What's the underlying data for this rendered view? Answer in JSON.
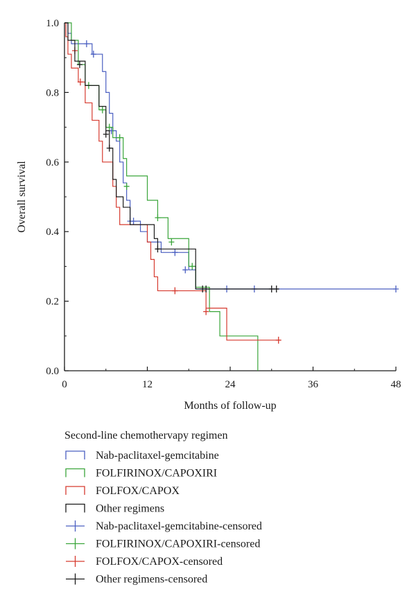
{
  "chart_data": {
    "type": "line",
    "subtype": "kaplan-meier",
    "title": "",
    "xlabel": "Months of follow-up",
    "ylabel": "Overall survival",
    "xlim": [
      0,
      48
    ],
    "ylim": [
      0,
      1.0
    ],
    "xticks": [
      0,
      12,
      24,
      36,
      48
    ],
    "yticks": [
      0.0,
      0.2,
      0.4,
      0.6,
      0.8,
      1.0
    ],
    "xtick_labels": [
      "0",
      "12",
      "24",
      "36",
      "48"
    ],
    "ytick_labels": [
      "0.0",
      "0.2",
      "0.4",
      "0.6",
      "0.8",
      "1.0"
    ],
    "grid": false,
    "legend_position": "bottom",
    "legend_title": "Second-line chemothervapy regimen",
    "legend": [
      {
        "label": "Nab-paclitaxel-gemcitabine",
        "color": "#4a5fc1",
        "kind": "step"
      },
      {
        "label": "FOLFIRINOX/CAPOXIRI",
        "color": "#3aa53a",
        "kind": "step"
      },
      {
        "label": "FOLFOX/CAPOX",
        "color": "#d63a2f",
        "kind": "step"
      },
      {
        "label": "Other regimens",
        "color": "#1a1a1a",
        "kind": "step"
      },
      {
        "label": "Nab-paclitaxel-gemcitabine-censored",
        "color": "#4a5fc1",
        "kind": "censor"
      },
      {
        "label": "FOLFIRINOX/CAPOXIRI-censored",
        "color": "#3aa53a",
        "kind": "censor"
      },
      {
        "label": "FOLFOX/CAPOX-censored",
        "color": "#d63a2f",
        "kind": "censor"
      },
      {
        "label": "Other regimens-censored",
        "color": "#1a1a1a",
        "kind": "censor"
      }
    ],
    "series": [
      {
        "color": "#4a5fc1",
        "steps": [
          [
            0,
            1.0
          ],
          [
            0.5,
            0.97
          ],
          [
            1,
            0.94
          ],
          [
            4,
            0.91
          ],
          [
            5.5,
            0.86
          ],
          [
            6,
            0.8
          ],
          [
            6.5,
            0.74
          ],
          [
            7,
            0.69
          ],
          [
            7.5,
            0.66
          ],
          [
            8,
            0.6
          ],
          [
            8.5,
            0.54
          ],
          [
            9,
            0.49
          ],
          [
            9.5,
            0.43
          ],
          [
            11,
            0.4
          ],
          [
            12,
            0.37
          ],
          [
            14,
            0.34
          ],
          [
            18,
            0.29
          ],
          [
            19,
            0.235
          ],
          [
            48,
            0.235
          ]
        ],
        "censored": [
          [
            3.2,
            0.94
          ],
          [
            4.2,
            0.91
          ],
          [
            6.8,
            0.69
          ],
          [
            9.5,
            0.43
          ],
          [
            10,
            0.43
          ],
          [
            16,
            0.34
          ],
          [
            17.5,
            0.29
          ],
          [
            23.5,
            0.235
          ],
          [
            27.5,
            0.235
          ],
          [
            48,
            0.235
          ]
        ]
      },
      {
        "color": "#3aa53a",
        "steps": [
          [
            0,
            1.0
          ],
          [
            1,
            0.95
          ],
          [
            2,
            0.88
          ],
          [
            3,
            0.82
          ],
          [
            5,
            0.75
          ],
          [
            6,
            0.7
          ],
          [
            7,
            0.67
          ],
          [
            8.5,
            0.61
          ],
          [
            9,
            0.56
          ],
          [
            12,
            0.49
          ],
          [
            13.5,
            0.44
          ],
          [
            15,
            0.38
          ],
          [
            18,
            0.3
          ],
          [
            19,
            0.24
          ],
          [
            21,
            0.17
          ],
          [
            22.5,
            0.1
          ],
          [
            28,
            0.0
          ]
        ],
        "censored": [
          [
            3.5,
            0.82
          ],
          [
            5.5,
            0.75
          ],
          [
            6.5,
            0.7
          ],
          [
            8,
            0.67
          ],
          [
            9,
            0.53
          ],
          [
            13.5,
            0.44
          ],
          [
            15.5,
            0.37
          ],
          [
            18.5,
            0.3
          ]
        ]
      },
      {
        "color": "#d63a2f",
        "steps": [
          [
            0,
            1.0
          ],
          [
            0.2,
            0.96
          ],
          [
            0.5,
            0.91
          ],
          [
            1,
            0.87
          ],
          [
            2,
            0.83
          ],
          [
            3,
            0.77
          ],
          [
            4,
            0.72
          ],
          [
            5,
            0.66
          ],
          [
            5.5,
            0.6
          ],
          [
            7,
            0.53
          ],
          [
            7.5,
            0.47
          ],
          [
            8,
            0.42
          ],
          [
            11,
            0.42
          ],
          [
            12,
            0.37
          ],
          [
            12.5,
            0.32
          ],
          [
            13,
            0.27
          ],
          [
            13.5,
            0.23
          ],
          [
            20,
            0.23
          ],
          [
            20.5,
            0.18
          ],
          [
            23.5,
            0.088
          ],
          [
            31,
            0.088
          ]
        ],
        "censored": [
          [
            1.5,
            0.92
          ],
          [
            2.3,
            0.83
          ],
          [
            16,
            0.23
          ],
          [
            20.5,
            0.17
          ],
          [
            31,
            0.088
          ]
        ]
      },
      {
        "color": "#1a1a1a",
        "steps": [
          [
            0,
            1.0
          ],
          [
            0.5,
            0.95
          ],
          [
            1.5,
            0.89
          ],
          [
            3,
            0.82
          ],
          [
            5,
            0.76
          ],
          [
            6,
            0.69
          ],
          [
            6.5,
            0.64
          ],
          [
            7,
            0.55
          ],
          [
            7.5,
            0.5
          ],
          [
            8.5,
            0.47
          ],
          [
            9.5,
            0.42
          ],
          [
            13,
            0.38
          ],
          [
            13.5,
            0.35
          ],
          [
            18.5,
            0.35
          ],
          [
            19,
            0.235
          ],
          [
            31,
            0.235
          ]
        ],
        "censored": [
          [
            2.2,
            0.88
          ],
          [
            6,
            0.68
          ],
          [
            6.5,
            0.64
          ],
          [
            13.5,
            0.35
          ],
          [
            20,
            0.235
          ],
          [
            20.5,
            0.235
          ],
          [
            30,
            0.235
          ],
          [
            30.7,
            0.235
          ]
        ]
      }
    ]
  }
}
